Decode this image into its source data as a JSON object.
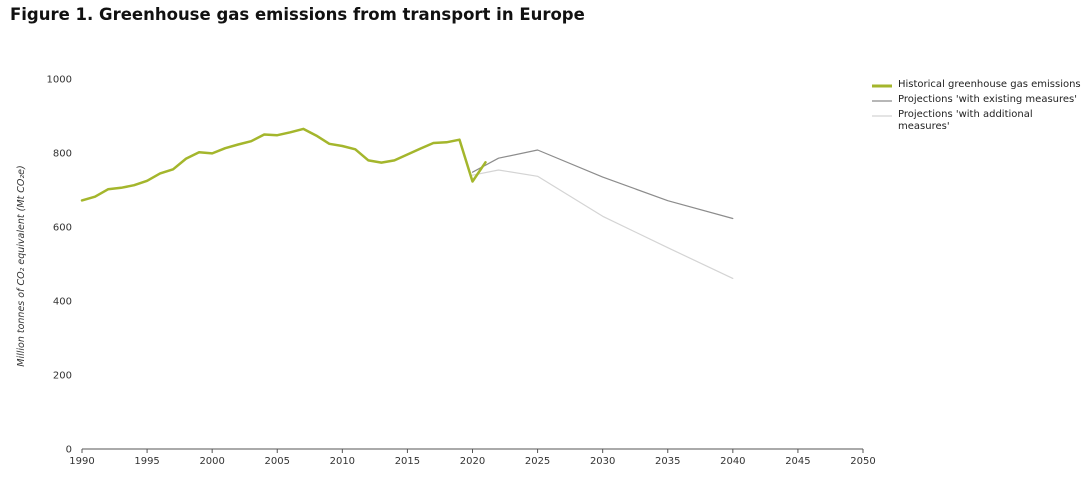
{
  "title": "Figure 1. Greenhouse gas emissions from transport in Europe",
  "chart_data": {
    "type": "line",
    "title": "Figure 1. Greenhouse gas emissions from transport in Europe",
    "xlabel": "",
    "ylabel": "Million tonnes of CO₂ equivalent (Mt CO₂e)",
    "xlim": [
      1990,
      2050
    ],
    "ylim": [
      0,
      1000
    ],
    "x_ticks": [
      1990,
      1995,
      2000,
      2005,
      2010,
      2015,
      2020,
      2025,
      2030,
      2035,
      2040,
      2045,
      2050
    ],
    "y_ticks": [
      0,
      200,
      400,
      600,
      800,
      1000
    ],
    "grid": false,
    "legend_position": "right",
    "series": [
      {
        "name": "Historical greenhouse gas emissions",
        "color": "#a4b62c",
        "x": [
          1990,
          1991,
          1992,
          1993,
          1994,
          1995,
          1996,
          1997,
          1998,
          1999,
          2000,
          2001,
          2002,
          2003,
          2004,
          2005,
          2006,
          2007,
          2008,
          2009,
          2010,
          2011,
          2012,
          2013,
          2014,
          2015,
          2016,
          2017,
          2018,
          2019,
          2020,
          2021
        ],
        "y": [
          672,
          682,
          702,
          706,
          713,
          725,
          745,
          756,
          785,
          802,
          799,
          813,
          823,
          832,
          850,
          848,
          856,
          865,
          847,
          825,
          819,
          810,
          780,
          774,
          780,
          796,
          812,
          827,
          829,
          836,
          723,
          775
        ]
      },
      {
        "name": "Projections 'with existing measures'",
        "color": "#8c8c8c",
        "x": [
          2020,
          2022,
          2025,
          2030,
          2035,
          2040
        ],
        "y": [
          748,
          786,
          808,
          735,
          671,
          623
        ]
      },
      {
        "name": "Projections 'with additional measures'",
        "color": "#d4d4d4",
        "x": [
          2020,
          2022,
          2025,
          2030,
          2035,
          2040
        ],
        "y": [
          740,
          754,
          737,
          629,
          544,
          461
        ]
      }
    ]
  }
}
